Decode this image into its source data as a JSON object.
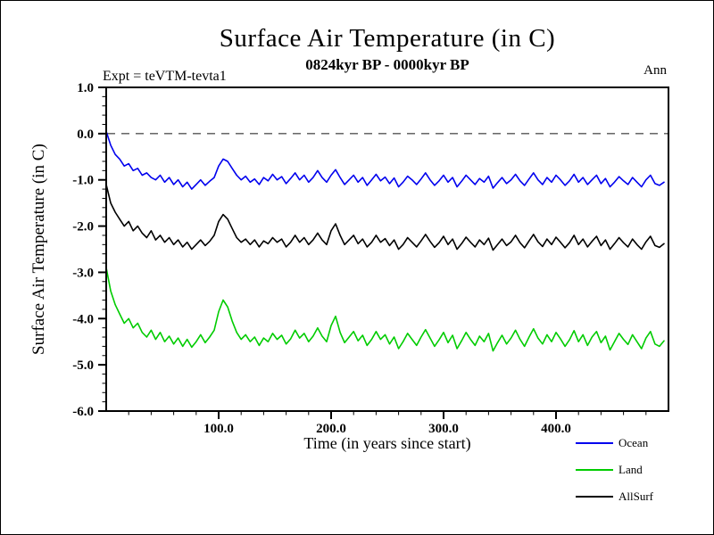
{
  "chart_data": {
    "type": "line",
    "title": "Surface Air Temperature (in C)",
    "subtitle": "0824kyr BP - 0000kyr BP",
    "annotation_left": "Expt = teVTM-tevta1",
    "annotation_right": "Ann",
    "xlabel": "Time (in years since start)",
    "ylabel": "Surface Air Temperature (in C)",
    "xlim": [
      0,
      500
    ],
    "ylim": [
      -6.0,
      1.0
    ],
    "x_major_ticks": [
      100,
      200,
      300,
      400
    ],
    "x_minor_step": 20,
    "y_major_ticks": [
      1.0,
      0.0,
      -1.0,
      -2.0,
      -3.0,
      -4.0,
      -5.0,
      -6.0
    ],
    "y_minor_step": 0.2,
    "grid": false,
    "zero_line": {
      "y": 0.0,
      "style": "dashed",
      "color": "#555555"
    },
    "frame_color": "#000000",
    "legend_position": "bottom-right-outside",
    "x_start": 0,
    "x_step": 4,
    "series": [
      {
        "name": "Ocean",
        "color": "#0000ee",
        "values": [
          0.05,
          -0.25,
          -0.45,
          -0.55,
          -0.7,
          -0.65,
          -0.8,
          -0.75,
          -0.9,
          -0.85,
          -0.95,
          -1.0,
          -0.9,
          -1.05,
          -0.95,
          -1.1,
          -1.0,
          -1.15,
          -1.05,
          -1.2,
          -1.1,
          -1.0,
          -1.12,
          -1.03,
          -0.95,
          -0.7,
          -0.55,
          -0.6,
          -0.75,
          -0.9,
          -1.0,
          -0.92,
          -1.05,
          -0.98,
          -1.1,
          -0.95,
          -1.02,
          -0.88,
          -1.0,
          -0.93,
          -1.08,
          -0.97,
          -0.85,
          -1.0,
          -0.9,
          -1.05,
          -0.95,
          -0.8,
          -0.95,
          -1.05,
          -0.9,
          -0.78,
          -0.95,
          -1.1,
          -1.0,
          -0.9,
          -1.05,
          -0.95,
          -1.12,
          -1.0,
          -0.88,
          -1.02,
          -0.94,
          -1.08,
          -0.96,
          -1.15,
          -1.05,
          -0.92,
          -1.0,
          -1.1,
          -0.98,
          -0.85,
          -1.0,
          -1.12,
          -1.02,
          -0.9,
          -1.05,
          -0.95,
          -1.15,
          -1.03,
          -0.9,
          -1.0,
          -1.1,
          -0.97,
          -1.05,
          -0.92,
          -1.18,
          -1.06,
          -0.95,
          -1.08,
          -1.0,
          -0.88,
          -1.02,
          -1.12,
          -0.98,
          -0.85,
          -1.0,
          -1.1,
          -0.95,
          -1.05,
          -0.9,
          -1.0,
          -1.12,
          -1.02,
          -0.88,
          -1.05,
          -0.95,
          -1.1,
          -1.0,
          -0.9,
          -1.08,
          -0.97,
          -1.15,
          -1.05,
          -0.93,
          -1.02,
          -1.1,
          -0.95,
          -1.05,
          -1.15,
          -1.0,
          -0.9,
          -1.08,
          -1.12,
          -1.05
        ]
      },
      {
        "name": "Land",
        "color": "#00cc00",
        "values": [
          -2.9,
          -3.4,
          -3.7,
          -3.9,
          -4.1,
          -4.0,
          -4.2,
          -4.1,
          -4.3,
          -4.4,
          -4.25,
          -4.45,
          -4.3,
          -4.5,
          -4.38,
          -4.55,
          -4.42,
          -4.6,
          -4.45,
          -4.62,
          -4.5,
          -4.35,
          -4.52,
          -4.4,
          -4.25,
          -3.85,
          -3.6,
          -3.75,
          -4.05,
          -4.3,
          -4.45,
          -4.35,
          -4.5,
          -4.4,
          -4.58,
          -4.42,
          -4.5,
          -4.32,
          -4.45,
          -4.36,
          -4.55,
          -4.44,
          -4.25,
          -4.42,
          -4.32,
          -4.5,
          -4.38,
          -4.2,
          -4.38,
          -4.5,
          -4.15,
          -3.95,
          -4.3,
          -4.52,
          -4.4,
          -4.28,
          -4.48,
          -4.36,
          -4.58,
          -4.45,
          -4.28,
          -4.45,
          -4.35,
          -4.55,
          -4.4,
          -4.65,
          -4.5,
          -4.32,
          -4.45,
          -4.58,
          -4.4,
          -4.24,
          -4.42,
          -4.6,
          -4.46,
          -4.3,
          -4.52,
          -4.36,
          -4.65,
          -4.48,
          -4.3,
          -4.45,
          -4.58,
          -4.38,
          -4.5,
          -4.32,
          -4.7,
          -4.52,
          -4.36,
          -4.55,
          -4.42,
          -4.25,
          -4.45,
          -4.6,
          -4.4,
          -4.22,
          -4.42,
          -4.55,
          -4.35,
          -4.5,
          -4.3,
          -4.44,
          -4.6,
          -4.46,
          -4.26,
          -4.5,
          -4.35,
          -4.58,
          -4.4,
          -4.28,
          -4.52,
          -4.38,
          -4.68,
          -4.5,
          -4.32,
          -4.45,
          -4.56,
          -4.35,
          -4.5,
          -4.65,
          -4.42,
          -4.28,
          -4.55,
          -4.6,
          -4.48
        ]
      },
      {
        "name": "AllSurf",
        "color": "#000000",
        "values": [
          -1.1,
          -1.5,
          -1.7,
          -1.85,
          -2.0,
          -1.9,
          -2.1,
          -2.0,
          -2.15,
          -2.25,
          -2.1,
          -2.3,
          -2.2,
          -2.35,
          -2.25,
          -2.4,
          -2.3,
          -2.45,
          -2.35,
          -2.5,
          -2.4,
          -2.3,
          -2.42,
          -2.33,
          -2.2,
          -1.9,
          -1.75,
          -1.85,
          -2.05,
          -2.25,
          -2.35,
          -2.28,
          -2.4,
          -2.3,
          -2.45,
          -2.32,
          -2.38,
          -2.25,
          -2.35,
          -2.28,
          -2.45,
          -2.35,
          -2.2,
          -2.35,
          -2.25,
          -2.4,
          -2.3,
          -2.15,
          -2.3,
          -2.4,
          -2.1,
          -1.95,
          -2.2,
          -2.4,
          -2.3,
          -2.2,
          -2.38,
          -2.28,
          -2.45,
          -2.35,
          -2.2,
          -2.35,
          -2.27,
          -2.42,
          -2.3,
          -2.5,
          -2.4,
          -2.25,
          -2.35,
          -2.45,
          -2.32,
          -2.18,
          -2.33,
          -2.46,
          -2.36,
          -2.22,
          -2.4,
          -2.28,
          -2.5,
          -2.38,
          -2.24,
          -2.35,
          -2.45,
          -2.3,
          -2.4,
          -2.26,
          -2.52,
          -2.4,
          -2.28,
          -2.42,
          -2.34,
          -2.2,
          -2.36,
          -2.47,
          -2.32,
          -2.18,
          -2.34,
          -2.44,
          -2.28,
          -2.4,
          -2.24,
          -2.35,
          -2.47,
          -2.36,
          -2.2,
          -2.4,
          -2.28,
          -2.45,
          -2.33,
          -2.22,
          -2.42,
          -2.3,
          -2.5,
          -2.38,
          -2.25,
          -2.36,
          -2.45,
          -2.28,
          -2.4,
          -2.5,
          -2.34,
          -2.22,
          -2.42,
          -2.46,
          -2.38
        ]
      }
    ],
    "legend": [
      {
        "name": "Ocean",
        "color": "#0000ee"
      },
      {
        "name": "Land",
        "color": "#00cc00"
      },
      {
        "name": "AllSurf",
        "color": "#000000"
      }
    ]
  }
}
